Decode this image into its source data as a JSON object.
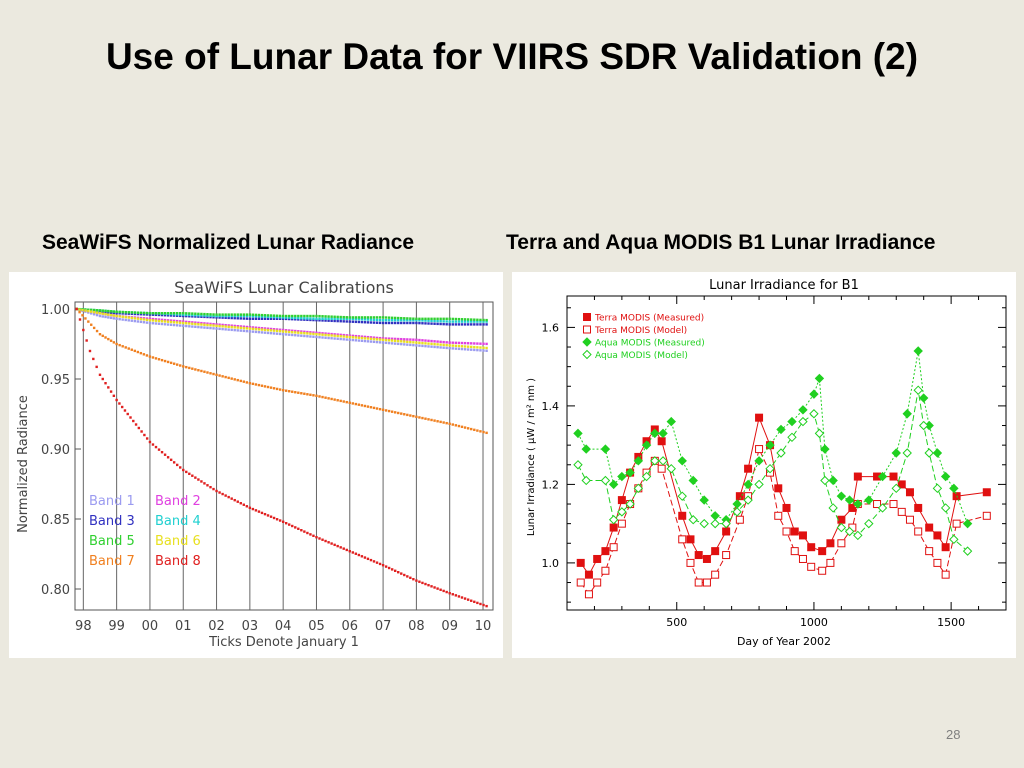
{
  "slide": {
    "title": "Use of Lunar Data for VIIRS SDR Validation (2)",
    "left_caption": "SeaWiFS Normalized Lunar Radiance",
    "right_caption": "Terra and Aqua MODIS B1 Lunar Irradiance",
    "page_number": "28"
  },
  "chart_data": [
    {
      "type": "scatter",
      "title": "SeaWiFS Lunar Calibrations",
      "xlabel": "Ticks Denote January 1",
      "ylabel": "Normalized Radiance",
      "x_ticks": [
        "98",
        "99",
        "00",
        "01",
        "02",
        "03",
        "04",
        "05",
        "06",
        "07",
        "08",
        "09",
        "10"
      ],
      "y_ticks": [
        "1.00",
        "0.95",
        "0.90",
        "0.85",
        "0.80"
      ],
      "xlim": [
        1997.75,
        2010.3
      ],
      "ylim": [
        0.785,
        1.005
      ],
      "grid": "vertical lines at January 1",
      "series": [
        {
          "name": "Band 1",
          "color": "#9b9bf0",
          "x": [
            1997.8,
            1998.5,
            1999,
            2000,
            2001,
            2002,
            2003,
            2004,
            2005,
            2006,
            2007,
            2008,
            2009,
            2010.2
          ],
          "values": [
            1.0,
            0.995,
            0.993,
            0.99,
            0.988,
            0.986,
            0.984,
            0.982,
            0.98,
            0.978,
            0.976,
            0.974,
            0.972,
            0.97
          ]
        },
        {
          "name": "Band 2",
          "color": "#e040e0",
          "x": [
            1997.8,
            1998.5,
            1999,
            2000,
            2001,
            2002,
            2003,
            2004,
            2005,
            2006,
            2007,
            2008,
            2009,
            2010.2
          ],
          "values": [
            1.0,
            0.997,
            0.995,
            0.993,
            0.991,
            0.989,
            0.987,
            0.985,
            0.983,
            0.981,
            0.979,
            0.978,
            0.976,
            0.975
          ]
        },
        {
          "name": "Band 3",
          "color": "#3030c0",
          "x": [
            1997.8,
            1998.5,
            1999,
            2000,
            2001,
            2002,
            2003,
            2004,
            2005,
            2006,
            2007,
            2008,
            2009,
            2010.2
          ],
          "values": [
            1.0,
            0.998,
            0.997,
            0.996,
            0.995,
            0.994,
            0.993,
            0.993,
            0.992,
            0.991,
            0.99,
            0.99,
            0.989,
            0.989
          ]
        },
        {
          "name": "Band 4",
          "color": "#20d0d0",
          "x": [
            1997.8,
            1998.5,
            1999,
            2000,
            2001,
            2002,
            2003,
            2004,
            2005,
            2006,
            2007,
            2008,
            2009,
            2010.2
          ],
          "values": [
            1.0,
            0.999,
            0.998,
            0.997,
            0.996,
            0.995,
            0.995,
            0.994,
            0.993,
            0.993,
            0.992,
            0.992,
            0.991,
            0.991
          ]
        },
        {
          "name": "Band 5",
          "color": "#30d030",
          "x": [
            1997.8,
            1998.5,
            1999,
            2000,
            2001,
            2002,
            2003,
            2004,
            2005,
            2006,
            2007,
            2008,
            2009,
            2010.2
          ],
          "values": [
            1.0,
            0.999,
            0.998,
            0.997,
            0.997,
            0.996,
            0.996,
            0.995,
            0.995,
            0.994,
            0.994,
            0.993,
            0.993,
            0.992
          ]
        },
        {
          "name": "Band 6",
          "color": "#e8e020",
          "x": [
            1997.8,
            1998.5,
            1999,
            2000,
            2001,
            2002,
            2003,
            2004,
            2005,
            2006,
            2007,
            2008,
            2009,
            2010.2
          ],
          "values": [
            1.0,
            0.997,
            0.995,
            0.992,
            0.99,
            0.988,
            0.986,
            0.984,
            0.982,
            0.98,
            0.978,
            0.976,
            0.974,
            0.972
          ]
        },
        {
          "name": "Band 7",
          "color": "#f08020",
          "x": [
            1997.8,
            1998.5,
            1999,
            2000,
            2001,
            2002,
            2003,
            2004,
            2005,
            2006,
            2007,
            2008,
            2009,
            2010.2
          ],
          "values": [
            1.0,
            0.982,
            0.975,
            0.966,
            0.959,
            0.953,
            0.947,
            0.942,
            0.938,
            0.933,
            0.928,
            0.923,
            0.918,
            0.911
          ]
        },
        {
          "name": "Band 8",
          "color": "#e02020",
          "x": [
            1997.8,
            1998.2,
            1998.5,
            1999,
            1999.5,
            2000,
            2001,
            2002,
            2003,
            2004,
            2005,
            2006,
            2007,
            2008,
            2009,
            2010.2
          ],
          "values": [
            1.0,
            0.97,
            0.953,
            0.935,
            0.92,
            0.905,
            0.885,
            0.87,
            0.858,
            0.848,
            0.837,
            0.827,
            0.817,
            0.806,
            0.797,
            0.787
          ]
        }
      ]
    },
    {
      "type": "line",
      "title": "Lunar Irradiance for B1",
      "xlabel": "Day of Year 2002",
      "ylabel": "Lunar Irradiance ( µW / m² nm )",
      "x_ticks": [
        "500",
        "1000",
        "1500"
      ],
      "y_ticks": [
        "1.0",
        "1.2",
        "1.4",
        "1.6"
      ],
      "xlim": [
        100,
        1700
      ],
      "ylim": [
        0.88,
        1.68
      ],
      "legend": "top-left",
      "series": [
        {
          "name": "Terra MODIS (Measured)",
          "color": "#e01010",
          "style": "solid",
          "marker": "filled-square",
          "x": [
            150,
            180,
            210,
            240,
            270,
            300,
            330,
            360,
            390,
            420,
            445,
            520,
            550,
            580,
            610,
            640,
            680,
            730,
            760,
            800,
            840,
            870,
            900,
            930,
            960,
            990,
            1030,
            1060,
            1100,
            1140,
            1160,
            1230,
            1290,
            1320,
            1350,
            1380,
            1420,
            1450,
            1480,
            1520,
            1630
          ],
          "values": [
            1.0,
            0.97,
            1.01,
            1.03,
            1.09,
            1.16,
            1.23,
            1.27,
            1.31,
            1.34,
            1.31,
            1.12,
            1.06,
            1.02,
            1.01,
            1.03,
            1.08,
            1.17,
            1.24,
            1.37,
            1.3,
            1.19,
            1.14,
            1.08,
            1.07,
            1.04,
            1.03,
            1.05,
            1.11,
            1.14,
            1.22,
            1.22,
            1.22,
            1.2,
            1.18,
            1.14,
            1.09,
            1.07,
            1.04,
            1.17,
            1.18
          ]
        },
        {
          "name": "Terra MODIS (Model)",
          "color": "#e01010",
          "style": "dashed",
          "marker": "open-square",
          "x": [
            150,
            180,
            210,
            240,
            270,
            300,
            330,
            360,
            390,
            420,
            445,
            520,
            550,
            580,
            610,
            640,
            680,
            730,
            760,
            800,
            840,
            870,
            900,
            930,
            960,
            990,
            1030,
            1060,
            1100,
            1140,
            1160,
            1230,
            1290,
            1320,
            1350,
            1380,
            1420,
            1450,
            1480,
            1520,
            1630
          ],
          "values": [
            0.95,
            0.92,
            0.95,
            0.98,
            1.04,
            1.1,
            1.15,
            1.19,
            1.23,
            1.26,
            1.24,
            1.06,
            1.0,
            0.95,
            0.95,
            0.97,
            1.02,
            1.11,
            1.17,
            1.29,
            1.23,
            1.12,
            1.08,
            1.03,
            1.01,
            0.99,
            0.98,
            1.0,
            1.05,
            1.09,
            1.15,
            1.15,
            1.15,
            1.13,
            1.11,
            1.08,
            1.03,
            1.0,
            0.97,
            1.1,
            1.12
          ]
        },
        {
          "name": "Aqua MODIS (Measured)",
          "color": "#20d020",
          "style": "dotted",
          "marker": "filled-diamond",
          "x": [
            140,
            170,
            240,
            270,
            300,
            330,
            360,
            390,
            420,
            450,
            480,
            520,
            560,
            600,
            640,
            680,
            720,
            760,
            800,
            840,
            880,
            920,
            960,
            1000,
            1020,
            1040,
            1070,
            1100,
            1130,
            1160,
            1200,
            1250,
            1300,
            1340,
            1380,
            1400,
            1420,
            1450,
            1480,
            1510,
            1560
          ],
          "values": [
            1.33,
            1.29,
            1.29,
            1.2,
            1.22,
            1.23,
            1.26,
            1.3,
            1.33,
            1.33,
            1.36,
            1.26,
            1.21,
            1.16,
            1.12,
            1.11,
            1.15,
            1.2,
            1.26,
            1.3,
            1.34,
            1.36,
            1.39,
            1.43,
            1.47,
            1.29,
            1.21,
            1.17,
            1.16,
            1.15,
            1.16,
            1.22,
            1.28,
            1.38,
            1.54,
            1.42,
            1.35,
            1.28,
            1.22,
            1.19,
            1.1
          ]
        },
        {
          "name": "Aqua MODIS (Model)",
          "color": "#20d020",
          "style": "dashed",
          "marker": "open-diamond",
          "x": [
            140,
            170,
            240,
            270,
            300,
            330,
            360,
            390,
            420,
            450,
            480,
            520,
            560,
            600,
            640,
            680,
            720,
            760,
            800,
            840,
            880,
            920,
            960,
            1000,
            1020,
            1040,
            1070,
            1100,
            1130,
            1160,
            1200,
            1250,
            1300,
            1340,
            1380,
            1400,
            1420,
            1450,
            1480,
            1510,
            1560
          ],
          "values": [
            1.25,
            1.21,
            1.21,
            1.11,
            1.13,
            1.15,
            1.19,
            1.22,
            1.26,
            1.26,
            1.24,
            1.17,
            1.11,
            1.1,
            1.1,
            1.1,
            1.13,
            1.16,
            1.2,
            1.24,
            1.28,
            1.32,
            1.36,
            1.38,
            1.33,
            1.21,
            1.14,
            1.09,
            1.08,
            1.07,
            1.1,
            1.14,
            1.19,
            1.28,
            1.44,
            1.35,
            1.28,
            1.19,
            1.14,
            1.06,
            1.03
          ]
        }
      ]
    }
  ]
}
